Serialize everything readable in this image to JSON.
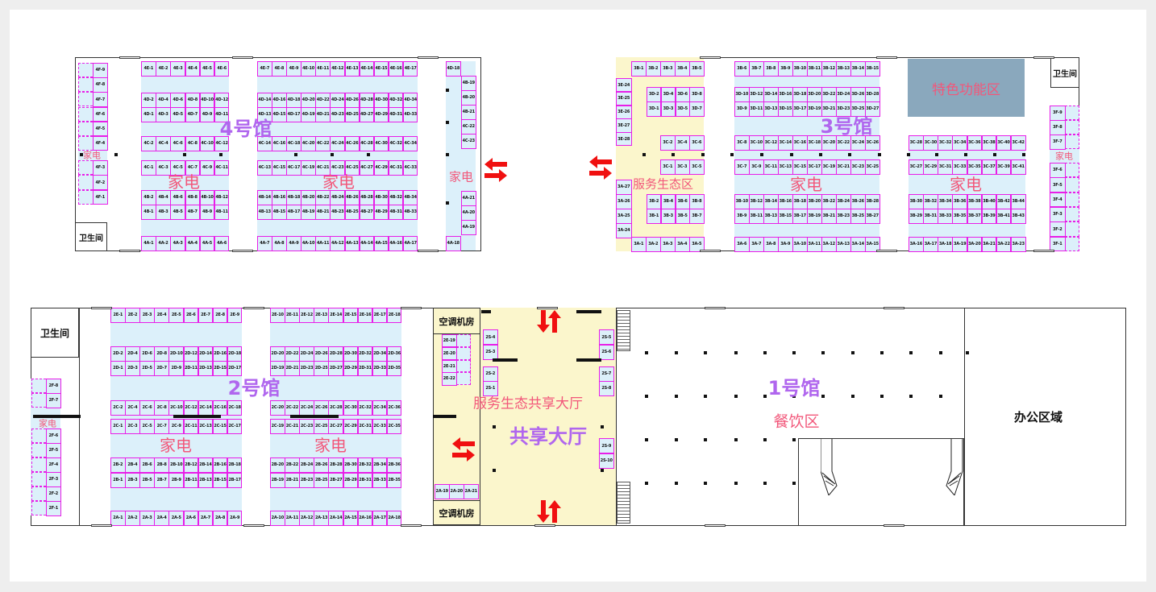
{
  "colors": {
    "booth_border": "#e81ee8",
    "booth_fill": "#dcf0fa",
    "service_fill": "#fbf6cc",
    "hall_title": "#b066ee",
    "zone_label": "#f2577a",
    "feature_fill": "#8aa8bd",
    "arrow": "#f01010"
  },
  "hall4": {
    "title": "4号馆",
    "zones": [
      "家电",
      "家电",
      "家电",
      "家电"
    ],
    "restroom": "卫生间",
    "booths": {
      "f_upper": [
        "4F-9",
        "4F-8",
        "4F-7",
        "4F-6",
        "4F-5",
        "4F-4"
      ],
      "f_lower": [
        "4F-3",
        "4F-2",
        "4F-1"
      ],
      "e_left": [
        "4E-1",
        "4E-2",
        "4E-3",
        "4E-4",
        "4E-5",
        "4E-6"
      ],
      "e_right": [
        "4E-7",
        "4E-8",
        "4E-9",
        "4E-10",
        "4E-11",
        "4E-12",
        "4E-13",
        "4E-14",
        "4E-15",
        "4E-16",
        "4E-17"
      ],
      "d_even_left": [
        "4D-2",
        "4D-4",
        "4D-6",
        "4D-8",
        "4D-10",
        "4D-12"
      ],
      "d_even_right": [
        "4D-14",
        "4D-16",
        "4D-18",
        "4D-20",
        "4D-22",
        "4D-24",
        "4D-26",
        "4D-28",
        "4D-30",
        "4D-32",
        "4D-34"
      ],
      "d_odd_left": [
        "4D-1",
        "4D-3",
        "4D-5",
        "4D-7",
        "4D-9",
        "4D-11"
      ],
      "d_odd_right": [
        "4D-13",
        "4D-15",
        "4D-17",
        "4D-19",
        "4D-21",
        "4D-23",
        "4D-25",
        "4D-27",
        "4D-29",
        "4D-31",
        "4D-33"
      ],
      "c_even_left": [
        "4C-2",
        "4C-4",
        "4C-6",
        "4C-8",
        "4C-10",
        "4C-12"
      ],
      "c_even_right": [
        "4C-14",
        "4C-16",
        "4C-18",
        "4C-20",
        "4C-22",
        "4C-24",
        "4C-26",
        "4C-28",
        "4C-30",
        "4C-32",
        "4C-34"
      ],
      "c_odd_left": [
        "4C-1",
        "4C-3",
        "4C-5",
        "4C-7",
        "4C-9",
        "4C-11"
      ],
      "c_odd_right": [
        "4C-13",
        "4C-15",
        "4C-17",
        "4C-19",
        "4C-21",
        "4C-23",
        "4C-25",
        "4C-27",
        "4C-29",
        "4C-31",
        "4C-33"
      ],
      "b_even_left": [
        "4B-2",
        "4B-4",
        "4B-6",
        "4B-8",
        "4B-10",
        "4B-12"
      ],
      "b_even_right": [
        "4B-14",
        "4B-16",
        "4B-18",
        "4B-20",
        "4B-22",
        "4B-24",
        "4B-26",
        "4B-28",
        "4B-30",
        "4B-32",
        "4B-34"
      ],
      "b_odd_left": [
        "4B-1",
        "4B-3",
        "4B-5",
        "4B-7",
        "4B-9",
        "4B-11"
      ],
      "b_odd_right": [
        "4B-13",
        "4B-15",
        "4B-17",
        "4B-19",
        "4B-21",
        "4B-23",
        "4B-25",
        "4B-27",
        "4B-29",
        "4B-31",
        "4B-33"
      ],
      "a_left": [
        "4A-1",
        "4A-2",
        "4A-3",
        "4A-4",
        "4A-5",
        "4A-6"
      ],
      "a_right": [
        "4A-7",
        "4A-8",
        "4A-9",
        "4A-10",
        "4A-11",
        "4A-12",
        "4A-13",
        "4A-14",
        "4A-15",
        "4A-16",
        "4A-17"
      ],
      "edge_top": [
        "4D-18"
      ],
      "edge_upper": [
        "4B-19",
        "4B-20",
        "4B-21",
        "4C-22",
        "4C-23"
      ],
      "edge_lower": [
        "4A-21",
        "4A-20",
        "4A-19"
      ],
      "edge_bottom": [
        "4A-18"
      ]
    }
  },
  "hall3": {
    "title": "3号馆",
    "service_zone": "服务生态区",
    "feature_zone": "特色功能区",
    "zones": [
      "家电",
      "家电",
      "家电"
    ],
    "restroom": "卫生间",
    "booths": {
      "e_col": [
        "3E-24",
        "3E-25",
        "3E-26",
        "3E-27",
        "3E-28"
      ],
      "a_col": [
        "3A-27",
        "3A-26",
        "3A-25",
        "3A-24"
      ],
      "y_b_top": [
        "3B-1",
        "3B-2",
        "3B-3",
        "3B-4",
        "3B-5"
      ],
      "y_d_even": [
        "3D-2",
        "3D-4",
        "3D-6",
        "3D-8"
      ],
      "y_d_odd": [
        "3D-1",
        "3D-3",
        "3D-5",
        "3D-7"
      ],
      "y_c_even": [
        "3C-2",
        "3C-4",
        "3C-6"
      ],
      "y_c_odd": [
        "3C-1",
        "3C-3",
        "3C-5"
      ],
      "y_b_even": [
        "3B-2",
        "3B-4",
        "3B-6",
        "3B-8"
      ],
      "y_b_odd": [
        "3B-1",
        "3B-3",
        "3B-5",
        "3B-7"
      ],
      "y_a": [
        "3A-1",
        "3A-2",
        "3A-3",
        "3A-4",
        "3A-5"
      ],
      "m_b_top": [
        "3B-6",
        "3B-7",
        "3B-8",
        "3B-9",
        "3B-10",
        "3B-11",
        "3B-12",
        "3B-13",
        "3B-14",
        "3B-15"
      ],
      "m_d_even": [
        "3D-10",
        "3D-12",
        "3D-14",
        "3D-16",
        "3D-18",
        "3D-20",
        "3D-22",
        "3D-24",
        "3D-26",
        "3D-28"
      ],
      "m_d_odd": [
        "3D-9",
        "3D-11",
        "3D-13",
        "3D-15",
        "3D-17",
        "3D-19",
        "3D-21",
        "3D-23",
        "3D-25",
        "3D-27"
      ],
      "m_c_even": [
        "3C-8",
        "3C-10",
        "3C-12",
        "3C-14",
        "3C-16",
        "3C-18",
        "3C-20",
        "3C-22",
        "3C-24",
        "3C-26"
      ],
      "m_c_odd": [
        "3C-7",
        "3C-9",
        "3C-11",
        "3C-13",
        "3C-15",
        "3C-17",
        "3C-19",
        "3C-21",
        "3C-23",
        "3C-25"
      ],
      "m_b_even": [
        "3B-10",
        "3B-12",
        "3B-14",
        "3B-16",
        "3B-18",
        "3B-20",
        "3B-22",
        "3B-24",
        "3B-26",
        "3B-28"
      ],
      "m_b_odd": [
        "3B-9",
        "3B-11",
        "3B-13",
        "3B-15",
        "3B-17",
        "3B-19",
        "3B-21",
        "3B-23",
        "3B-25",
        "3B-27"
      ],
      "m_a": [
        "3A-6",
        "3A-7",
        "3A-8",
        "3A-9",
        "3A-10",
        "3A-11",
        "3A-12",
        "3A-13",
        "3A-14",
        "3A-15"
      ],
      "r_c_even": [
        "3C-28",
        "3C-30",
        "3C-32",
        "3C-34",
        "3C-36",
        "3C-38",
        "3C-40",
        "3C-42"
      ],
      "r_c_odd": [
        "3C-27",
        "3C-29",
        "3C-31",
        "3C-33",
        "3C-35",
        "3C-37",
        "3C-39",
        "3C-41"
      ],
      "r_b_even": [
        "3B-30",
        "3B-32",
        "3B-34",
        "3B-36",
        "3B-38",
        "3B-40",
        "3B-42",
        "3B-44"
      ],
      "r_b_odd": [
        "3B-29",
        "3B-31",
        "3B-33",
        "3B-35",
        "3B-37",
        "3B-39",
        "3B-41",
        "3B-43"
      ],
      "r_a": [
        "3A-16",
        "3A-17",
        "3A-18",
        "3A-19",
        "3A-20",
        "3A-21",
        "3A-22",
        "3A-23"
      ],
      "f_upper": [
        "3F-9",
        "3F-8",
        "3F-7"
      ],
      "f_lower": [
        "3F-6",
        "3F-5",
        "3F-4",
        "3F-3",
        "3F-2",
        "3F-1"
      ]
    },
    "side_zone": "家电"
  },
  "hall2": {
    "title": "2号馆",
    "zones": [
      "家电",
      "家电",
      "家电"
    ],
    "restroom": "卫生间",
    "booths": {
      "e_left": [
        "2E-1",
        "2E-2",
        "2E-3",
        "2E-4",
        "2E-5",
        "2E-6",
        "2E-7",
        "2E-8",
        "2E-9"
      ],
      "e_right": [
        "2E-10",
        "2E-11",
        "2E-12",
        "2E-13",
        "2E-14",
        "2E-15",
        "2E-16",
        "2E-17",
        "2E-18"
      ],
      "d_even_left": [
        "2D-2",
        "2D-4",
        "2D-6",
        "2D-8",
        "2D-10",
        "2D-12",
        "2D-14",
        "2D-16",
        "2D-18"
      ],
      "d_even_right": [
        "2D-20",
        "2D-22",
        "2D-24",
        "2D-26",
        "2D-28",
        "2D-30",
        "2D-32",
        "2D-34",
        "2D-36"
      ],
      "d_odd_left": [
        "2D-1",
        "2D-3",
        "2D-5",
        "2D-7",
        "2D-9",
        "2D-11",
        "2D-13",
        "2D-15",
        "2D-17"
      ],
      "d_odd_right": [
        "2D-19",
        "2D-21",
        "2D-23",
        "2D-25",
        "2D-27",
        "2D-29",
        "2D-31",
        "2D-33",
        "2D-35"
      ],
      "c_even_left": [
        "2C-2",
        "2C-4",
        "2C-6",
        "2C-8",
        "2C-10",
        "2C-12",
        "2C-14",
        "2C-16",
        "2C-18"
      ],
      "c_even_right": [
        "2C-20",
        "2C-22",
        "2C-24",
        "2C-26",
        "2C-28",
        "2C-30",
        "2C-32",
        "2C-34",
        "2C-36"
      ],
      "c_odd_left": [
        "2C-1",
        "2C-3",
        "2C-5",
        "2C-7",
        "2C-9",
        "2C-11",
        "2C-13",
        "2C-15",
        "2C-17"
      ],
      "c_odd_right": [
        "2C-19",
        "2C-21",
        "2C-23",
        "2C-25",
        "2C-27",
        "2C-29",
        "2C-31",
        "2C-33",
        "2C-35"
      ],
      "b_even_left": [
        "2B-2",
        "2B-4",
        "2B-6",
        "2B-8",
        "2B-10",
        "2B-12",
        "2B-14",
        "2B-16",
        "2B-18"
      ],
      "b_even_right": [
        "2B-20",
        "2B-22",
        "2B-24",
        "2B-26",
        "2B-28",
        "2B-30",
        "2B-32",
        "2B-34",
        "2B-36"
      ],
      "b_odd_left": [
        "2B-1",
        "2B-3",
        "2B-5",
        "2B-7",
        "2B-9",
        "2B-11",
        "2B-13",
        "2B-15",
        "2B-17"
      ],
      "b_odd_right": [
        "2B-19",
        "2B-21",
        "2B-23",
        "2B-25",
        "2B-27",
        "2B-29",
        "2B-31",
        "2B-33",
        "2B-35"
      ],
      "a_left": [
        "2A-1",
        "2A-2",
        "2A-3",
        "2A-4",
        "2A-5",
        "2A-6",
        "2A-7",
        "2A-8",
        "2A-9"
      ],
      "a_right": [
        "2A-10",
        "2A-11",
        "2A-12",
        "2A-13",
        "2A-14",
        "2A-15",
        "2A-16",
        "2A-17",
        "2A-18"
      ],
      "f_upper": [
        "2F-8",
        "2F-7"
      ],
      "f_lower": [
        "2F-6",
        "2F-5",
        "2F-4",
        "2F-3",
        "2F-2",
        "2F-1"
      ]
    }
  },
  "shared_hall": {
    "title": "共享大厅",
    "service_zone": "服务生态共享大厅",
    "machine_room_top": "空调机房",
    "machine_room_bottom": "空调机房",
    "booths": {
      "e_col": [
        "2E-19",
        "2E-20",
        "2E-21",
        "2E-22"
      ],
      "a_row": [
        "2A-19",
        "2A-20",
        "2A-21"
      ],
      "s_left_upper": [
        "2S-4",
        "2S-3"
      ],
      "s_left_lower": [
        "2S-2",
        "2S-1"
      ],
      "s_right_upper": [
        "2S-5",
        "2S-6"
      ],
      "s_right_middle": [
        "2S-7",
        "2S-8"
      ],
      "s_right_lower": [
        "2S-9",
        "2S-10"
      ]
    }
  },
  "hall1": {
    "title": "1号馆",
    "zone": "餐饮区",
    "office": "办公区域"
  }
}
